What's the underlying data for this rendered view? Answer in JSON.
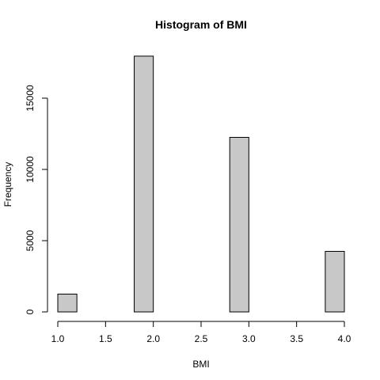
{
  "chart_data": {
    "type": "bar",
    "title": "Histogram of BMI",
    "xlabel": "BMI",
    "ylabel": "Frequency",
    "bin_width": 0.2,
    "bins": [
      {
        "start": 1.0,
        "end": 1.2,
        "value": 1250
      },
      {
        "start": 1.2,
        "end": 1.4,
        "value": 0
      },
      {
        "start": 1.4,
        "end": 1.6,
        "value": 0
      },
      {
        "start": 1.6,
        "end": 1.8,
        "value": 0
      },
      {
        "start": 1.8,
        "end": 2.0,
        "value": 17950
      },
      {
        "start": 2.0,
        "end": 2.2,
        "value": 0
      },
      {
        "start": 2.2,
        "end": 2.4,
        "value": 0
      },
      {
        "start": 2.4,
        "end": 2.6,
        "value": 0
      },
      {
        "start": 2.6,
        "end": 2.8,
        "value": 0
      },
      {
        "start": 2.8,
        "end": 3.0,
        "value": 12250
      },
      {
        "start": 3.0,
        "end": 3.2,
        "value": 0
      },
      {
        "start": 3.2,
        "end": 3.4,
        "value": 0
      },
      {
        "start": 3.4,
        "end": 3.6,
        "value": 0
      },
      {
        "start": 3.6,
        "end": 3.8,
        "value": 0
      },
      {
        "start": 3.8,
        "end": 4.0,
        "value": 4250
      }
    ],
    "xlim": [
      1.0,
      4.0
    ],
    "ylim": [
      0,
      18000
    ],
    "xticks": [
      1.0,
      1.5,
      2.0,
      2.5,
      3.0,
      3.5,
      4.0
    ],
    "xtick_labels": [
      "1.0",
      "1.5",
      "2.0",
      "2.5",
      "3.0",
      "3.5",
      "4.0"
    ],
    "yticks": [
      0,
      5000,
      10000,
      15000
    ],
    "ytick_labels": [
      "0",
      "5000",
      "10000",
      "15000"
    ],
    "bar_color": "#c8c8c8",
    "bar_border_color": "#000000",
    "grid": false
  }
}
